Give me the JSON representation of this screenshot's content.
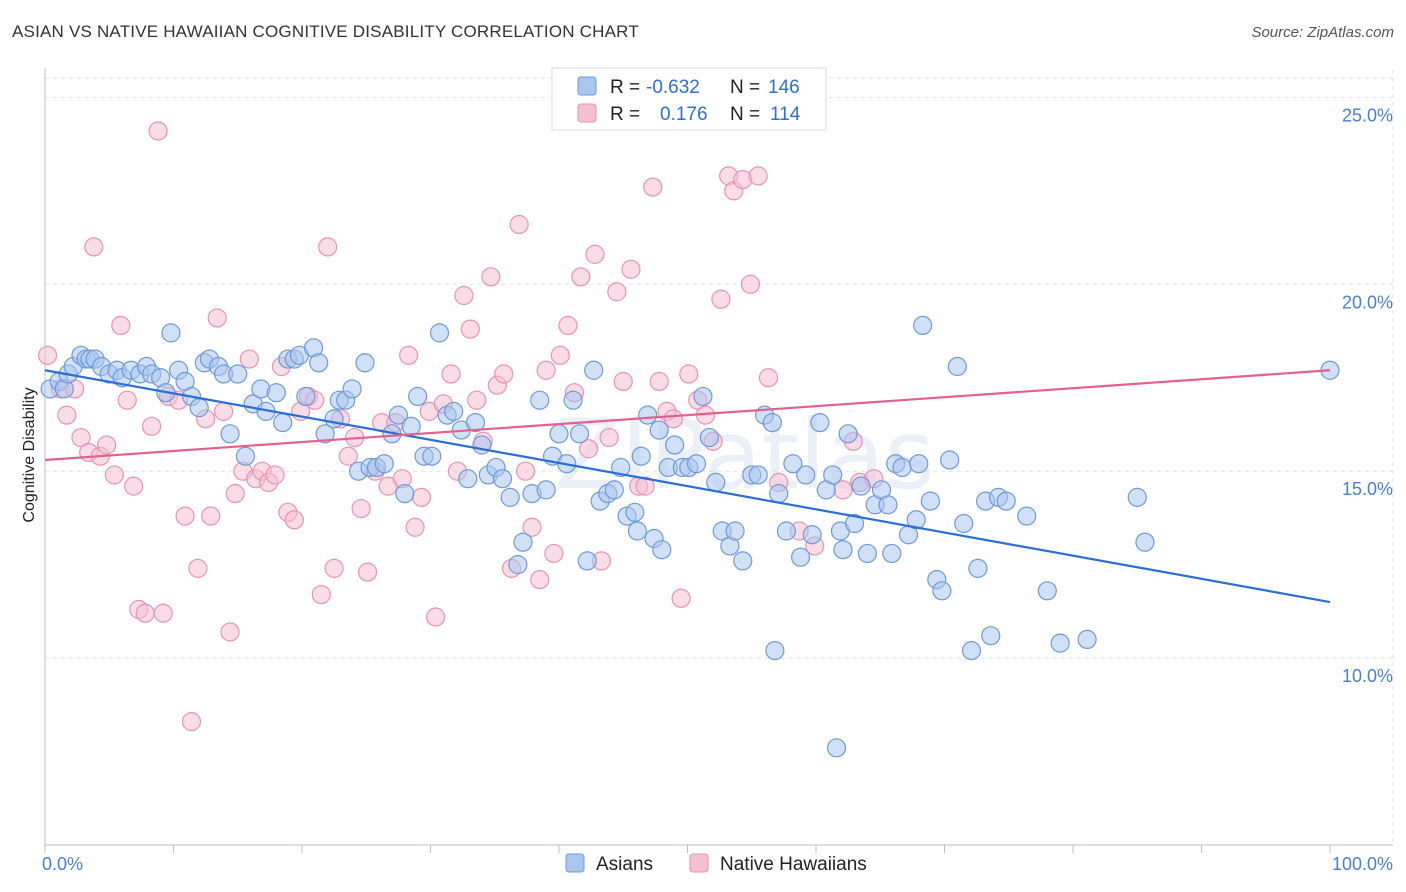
{
  "title": "ASIAN VS NATIVE HAWAIIAN COGNITIVE DISABILITY CORRELATION CHART",
  "source": "Source: ZipAtlas.com",
  "watermark": "ZIPatlas",
  "colors": {
    "asian_fill": "#a9c6ee",
    "asian_stroke": "#6f9ad8",
    "asian_line": "#2a6fd6",
    "hawaiian_fill": "#f6bfd2",
    "hawaiian_stroke": "#e893b2",
    "hawaiian_line": "#e2628d",
    "grid": "#dde3ea",
    "tick_text": "#4a7fd0"
  },
  "legend": {
    "rows": [
      {
        "r_label": "R =",
        "r_value": "-0.632",
        "n_label": "N =",
        "n_value": "146"
      },
      {
        "r_label": "R =",
        "r_value": "0.176",
        "n_label": "N =",
        "n_value": "114"
      }
    ]
  },
  "bottom_legend": [
    "Asians",
    "Native Hawaiians"
  ],
  "chart_data": {
    "type": "scatter",
    "title": "ASIAN VS NATIVE HAWAIIAN COGNITIVE DISABILITY CORRELATION CHART",
    "xlabel": "",
    "ylabel": "Cognitive Disability",
    "xlim": [
      0,
      100
    ],
    "ylim": [
      5.0,
      26.0
    ],
    "x_tick_labels": [
      "0.0%",
      "100.0%"
    ],
    "y_ticks": [
      10.0,
      15.0,
      20.0,
      25.0
    ],
    "y_tick_labels": [
      "10.0%",
      "15.0%",
      "20.0%",
      "25.0%"
    ],
    "grid": true,
    "legend_position": "top-center",
    "series": [
      {
        "name": "Asians",
        "r": -0.632,
        "n": 146,
        "trend": {
          "x": [
            0,
            100
          ],
          "y": [
            17.7,
            11.5
          ]
        },
        "points": [
          [
            0.4,
            17.2
          ],
          [
            1.1,
            17.4
          ],
          [
            1.5,
            17.2
          ],
          [
            1.8,
            17.6
          ],
          [
            2.2,
            17.8
          ],
          [
            2.8,
            18.1
          ],
          [
            3.2,
            18.0
          ],
          [
            3.5,
            18.0
          ],
          [
            3.9,
            18.0
          ],
          [
            4.4,
            17.8
          ],
          [
            5.0,
            17.6
          ],
          [
            5.6,
            17.7
          ],
          [
            6.0,
            17.5
          ],
          [
            6.7,
            17.7
          ],
          [
            7.4,
            17.6
          ],
          [
            7.9,
            17.8
          ],
          [
            8.3,
            17.6
          ],
          [
            9.0,
            17.5
          ],
          [
            9.4,
            17.1
          ],
          [
            9.8,
            18.7
          ],
          [
            10.4,
            17.7
          ],
          [
            10.9,
            17.4
          ],
          [
            11.4,
            17.0
          ],
          [
            12.0,
            16.7
          ],
          [
            12.4,
            17.9
          ],
          [
            12.8,
            18.0
          ],
          [
            13.5,
            17.8
          ],
          [
            13.9,
            17.6
          ],
          [
            14.4,
            16.0
          ],
          [
            15.0,
            17.6
          ],
          [
            15.6,
            15.4
          ],
          [
            16.2,
            16.8
          ],
          [
            16.8,
            17.2
          ],
          [
            17.2,
            16.6
          ],
          [
            18.0,
            17.1
          ],
          [
            18.5,
            16.3
          ],
          [
            18.9,
            18.0
          ],
          [
            19.4,
            18.0
          ],
          [
            19.8,
            18.1
          ],
          [
            20.3,
            17.0
          ],
          [
            20.9,
            18.3
          ],
          [
            21.3,
            17.9
          ],
          [
            21.8,
            16.0
          ],
          [
            22.5,
            16.4
          ],
          [
            22.9,
            16.9
          ],
          [
            23.4,
            16.9
          ],
          [
            23.9,
            17.2
          ],
          [
            24.4,
            15.0
          ],
          [
            24.9,
            17.9
          ],
          [
            25.3,
            15.1
          ],
          [
            25.8,
            15.1
          ],
          [
            26.4,
            15.2
          ],
          [
            27.0,
            16.0
          ],
          [
            27.5,
            16.5
          ],
          [
            28.0,
            14.4
          ],
          [
            28.5,
            16.2
          ],
          [
            29.0,
            17.0
          ],
          [
            29.5,
            15.4
          ],
          [
            30.1,
            15.4
          ],
          [
            30.7,
            18.7
          ],
          [
            31.3,
            16.5
          ],
          [
            31.8,
            16.6
          ],
          [
            32.4,
            16.1
          ],
          [
            32.9,
            14.8
          ],
          [
            33.5,
            16.3
          ],
          [
            34.0,
            15.7
          ],
          [
            34.5,
            14.9
          ],
          [
            35.1,
            15.1
          ],
          [
            35.6,
            14.8
          ],
          [
            36.2,
            14.3
          ],
          [
            36.8,
            12.5
          ],
          [
            37.2,
            13.1
          ],
          [
            37.9,
            14.4
          ],
          [
            38.5,
            16.9
          ],
          [
            39.0,
            14.5
          ],
          [
            39.5,
            15.4
          ],
          [
            40.0,
            16.0
          ],
          [
            40.6,
            15.2
          ],
          [
            41.1,
            16.9
          ],
          [
            41.6,
            16.0
          ],
          [
            42.2,
            12.6
          ],
          [
            42.7,
            17.7
          ],
          [
            43.2,
            14.2
          ],
          [
            43.8,
            14.4
          ],
          [
            44.3,
            14.5
          ],
          [
            44.8,
            15.1
          ],
          [
            45.3,
            13.8
          ],
          [
            45.9,
            13.9
          ],
          [
            46.4,
            15.4
          ],
          [
            46.9,
            16.5
          ],
          [
            47.4,
            13.2
          ],
          [
            48.0,
            12.9
          ],
          [
            48.5,
            15.1
          ],
          [
            49.0,
            15.7
          ],
          [
            49.6,
            15.1
          ],
          [
            50.1,
            15.1
          ],
          [
            50.7,
            15.2
          ],
          [
            51.2,
            17.0
          ],
          [
            51.7,
            15.9
          ],
          [
            52.2,
            14.7
          ],
          [
            52.7,
            13.4
          ],
          [
            53.3,
            13.0
          ],
          [
            53.7,
            13.4
          ],
          [
            54.3,
            12.6
          ],
          [
            55.0,
            14.9
          ],
          [
            55.5,
            14.9
          ],
          [
            56.0,
            16.5
          ],
          [
            56.6,
            16.3
          ],
          [
            57.1,
            14.4
          ],
          [
            57.7,
            13.4
          ],
          [
            58.2,
            15.2
          ],
          [
            58.8,
            12.7
          ],
          [
            59.2,
            14.9
          ],
          [
            59.7,
            13.3
          ],
          [
            60.3,
            16.3
          ],
          [
            60.8,
            14.5
          ],
          [
            61.3,
            14.9
          ],
          [
            61.9,
            13.4
          ],
          [
            62.5,
            16.0
          ],
          [
            63.0,
            13.6
          ],
          [
            63.5,
            14.6
          ],
          [
            64.0,
            12.8
          ],
          [
            64.6,
            14.1
          ],
          [
            65.1,
            14.5
          ],
          [
            65.6,
            14.1
          ],
          [
            66.2,
            15.2
          ],
          [
            66.7,
            15.1
          ],
          [
            67.2,
            13.3
          ],
          [
            67.8,
            13.7
          ],
          [
            68.3,
            18.9
          ],
          [
            68.9,
            14.2
          ],
          [
            69.4,
            12.1
          ],
          [
            69.8,
            11.8
          ],
          [
            70.4,
            15.3
          ],
          [
            71.0,
            17.8
          ],
          [
            71.5,
            13.6
          ],
          [
            72.1,
            10.2
          ],
          [
            72.6,
            12.4
          ],
          [
            73.2,
            14.2
          ],
          [
            73.6,
            10.6
          ],
          [
            74.2,
            14.3
          ],
          [
            76.4,
            13.8
          ],
          [
            78.0,
            11.8
          ],
          [
            79.0,
            10.4
          ],
          [
            81.1,
            10.5
          ],
          [
            85.0,
            14.3
          ],
          [
            85.6,
            13.1
          ],
          [
            100.0,
            17.7
          ],
          [
            56.8,
            10.2
          ],
          [
            61.6,
            7.6
          ],
          [
            62.1,
            12.9
          ],
          [
            65.9,
            12.8
          ],
          [
            68.0,
            15.2
          ],
          [
            47.8,
            16.1
          ],
          [
            46.1,
            13.4
          ],
          [
            74.8,
            14.2
          ]
        ]
      },
      {
        "name": "Native Hawaiians",
        "r": 0.176,
        "n": 114,
        "trend": {
          "x": [
            0,
            100
          ],
          "y": [
            15.3,
            17.7
          ]
        },
        "points": [
          [
            0.2,
            18.1
          ],
          [
            1.2,
            17.2
          ],
          [
            1.7,
            16.5
          ],
          [
            2.3,
            17.2
          ],
          [
            2.8,
            15.9
          ],
          [
            3.4,
            15.5
          ],
          [
            3.8,
            21.0
          ],
          [
            4.3,
            15.4
          ],
          [
            4.8,
            15.7
          ],
          [
            5.4,
            14.9
          ],
          [
            5.9,
            18.9
          ],
          [
            6.4,
            16.9
          ],
          [
            6.9,
            14.6
          ],
          [
            7.3,
            11.3
          ],
          [
            7.8,
            11.2
          ],
          [
            8.3,
            16.2
          ],
          [
            8.8,
            24.1
          ],
          [
            9.2,
            11.2
          ],
          [
            9.6,
            17.0
          ],
          [
            10.4,
            16.9
          ],
          [
            10.9,
            13.8
          ],
          [
            11.4,
            8.3
          ],
          [
            11.9,
            12.4
          ],
          [
            12.5,
            16.4
          ],
          [
            12.9,
            13.8
          ],
          [
            13.4,
            19.1
          ],
          [
            13.9,
            16.6
          ],
          [
            14.4,
            10.7
          ],
          [
            14.8,
            14.4
          ],
          [
            15.4,
            15.0
          ],
          [
            15.9,
            18.0
          ],
          [
            16.4,
            14.8
          ],
          [
            16.9,
            15.0
          ],
          [
            17.4,
            14.7
          ],
          [
            17.9,
            14.9
          ],
          [
            18.4,
            17.8
          ],
          [
            18.9,
            13.9
          ],
          [
            19.4,
            13.7
          ],
          [
            19.9,
            16.6
          ],
          [
            20.5,
            17.0
          ],
          [
            21.0,
            16.9
          ],
          [
            21.5,
            11.7
          ],
          [
            22.0,
            21.0
          ],
          [
            22.5,
            12.4
          ],
          [
            23.0,
            16.4
          ],
          [
            23.6,
            15.4
          ],
          [
            24.1,
            15.9
          ],
          [
            24.6,
            14.0
          ],
          [
            25.1,
            12.3
          ],
          [
            25.7,
            15.0
          ],
          [
            26.2,
            16.3
          ],
          [
            26.7,
            14.6
          ],
          [
            27.3,
            16.3
          ],
          [
            27.8,
            14.8
          ],
          [
            28.3,
            18.1
          ],
          [
            28.8,
            13.5
          ],
          [
            29.3,
            14.3
          ],
          [
            29.9,
            16.6
          ],
          [
            30.4,
            11.1
          ],
          [
            31.0,
            16.8
          ],
          [
            31.6,
            17.6
          ],
          [
            32.1,
            15.0
          ],
          [
            32.6,
            19.7
          ],
          [
            33.1,
            18.8
          ],
          [
            33.6,
            16.9
          ],
          [
            34.1,
            15.8
          ],
          [
            34.7,
            20.2
          ],
          [
            35.2,
            17.3
          ],
          [
            35.7,
            17.6
          ],
          [
            36.3,
            12.4
          ],
          [
            36.9,
            21.6
          ],
          [
            37.4,
            15.0
          ],
          [
            37.9,
            13.5
          ],
          [
            38.5,
            12.1
          ],
          [
            39.0,
            17.7
          ],
          [
            39.6,
            12.8
          ],
          [
            40.1,
            18.1
          ],
          [
            40.7,
            18.9
          ],
          [
            41.2,
            17.1
          ],
          [
            41.7,
            20.2
          ],
          [
            42.3,
            15.6
          ],
          [
            42.8,
            20.8
          ],
          [
            43.3,
            12.6
          ],
          [
            43.9,
            15.9
          ],
          [
            44.5,
            19.8
          ],
          [
            45.0,
            17.4
          ],
          [
            45.6,
            20.4
          ],
          [
            46.2,
            14.6
          ],
          [
            46.7,
            14.6
          ],
          [
            47.3,
            22.6
          ],
          [
            47.8,
            17.4
          ],
          [
            48.4,
            16.6
          ],
          [
            48.9,
            16.4
          ],
          [
            49.5,
            11.6
          ],
          [
            50.1,
            17.6
          ],
          [
            50.8,
            16.9
          ],
          [
            51.4,
            16.5
          ],
          [
            52.0,
            15.8
          ],
          [
            52.6,
            19.6
          ],
          [
            53.2,
            22.9
          ],
          [
            53.6,
            22.5
          ],
          [
            54.3,
            22.8
          ],
          [
            54.9,
            20.0
          ],
          [
            55.5,
            22.9
          ],
          [
            56.3,
            17.5
          ],
          [
            57.1,
            14.7
          ],
          [
            58.7,
            13.4
          ],
          [
            59.9,
            13.0
          ],
          [
            62.1,
            14.5
          ],
          [
            62.9,
            15.8
          ],
          [
            63.4,
            14.7
          ],
          [
            64.5,
            14.8
          ]
        ]
      }
    ]
  }
}
